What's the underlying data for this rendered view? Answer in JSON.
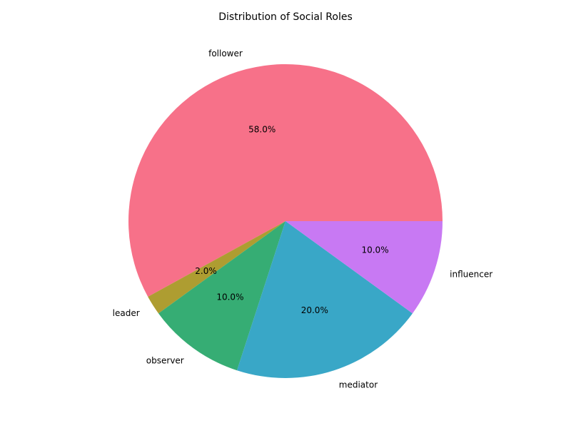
{
  "chart_data": {
    "type": "pie",
    "title": "Distribution of Social Roles",
    "categories": [
      "follower",
      "leader",
      "observer",
      "mediator",
      "influencer"
    ],
    "values": [
      58.0,
      2.0,
      10.0,
      20.0,
      10.0
    ],
    "percent_labels": [
      "58.0%",
      "2.0%",
      "10.0%",
      "20.0%",
      "10.0%"
    ],
    "colors": [
      "#f77189",
      "#ae9d31",
      "#36ad74",
      "#39a7c7",
      "#c879f3"
    ],
    "start_angle_deg": 0,
    "direction": "counterclockwise",
    "legend": "none"
  }
}
